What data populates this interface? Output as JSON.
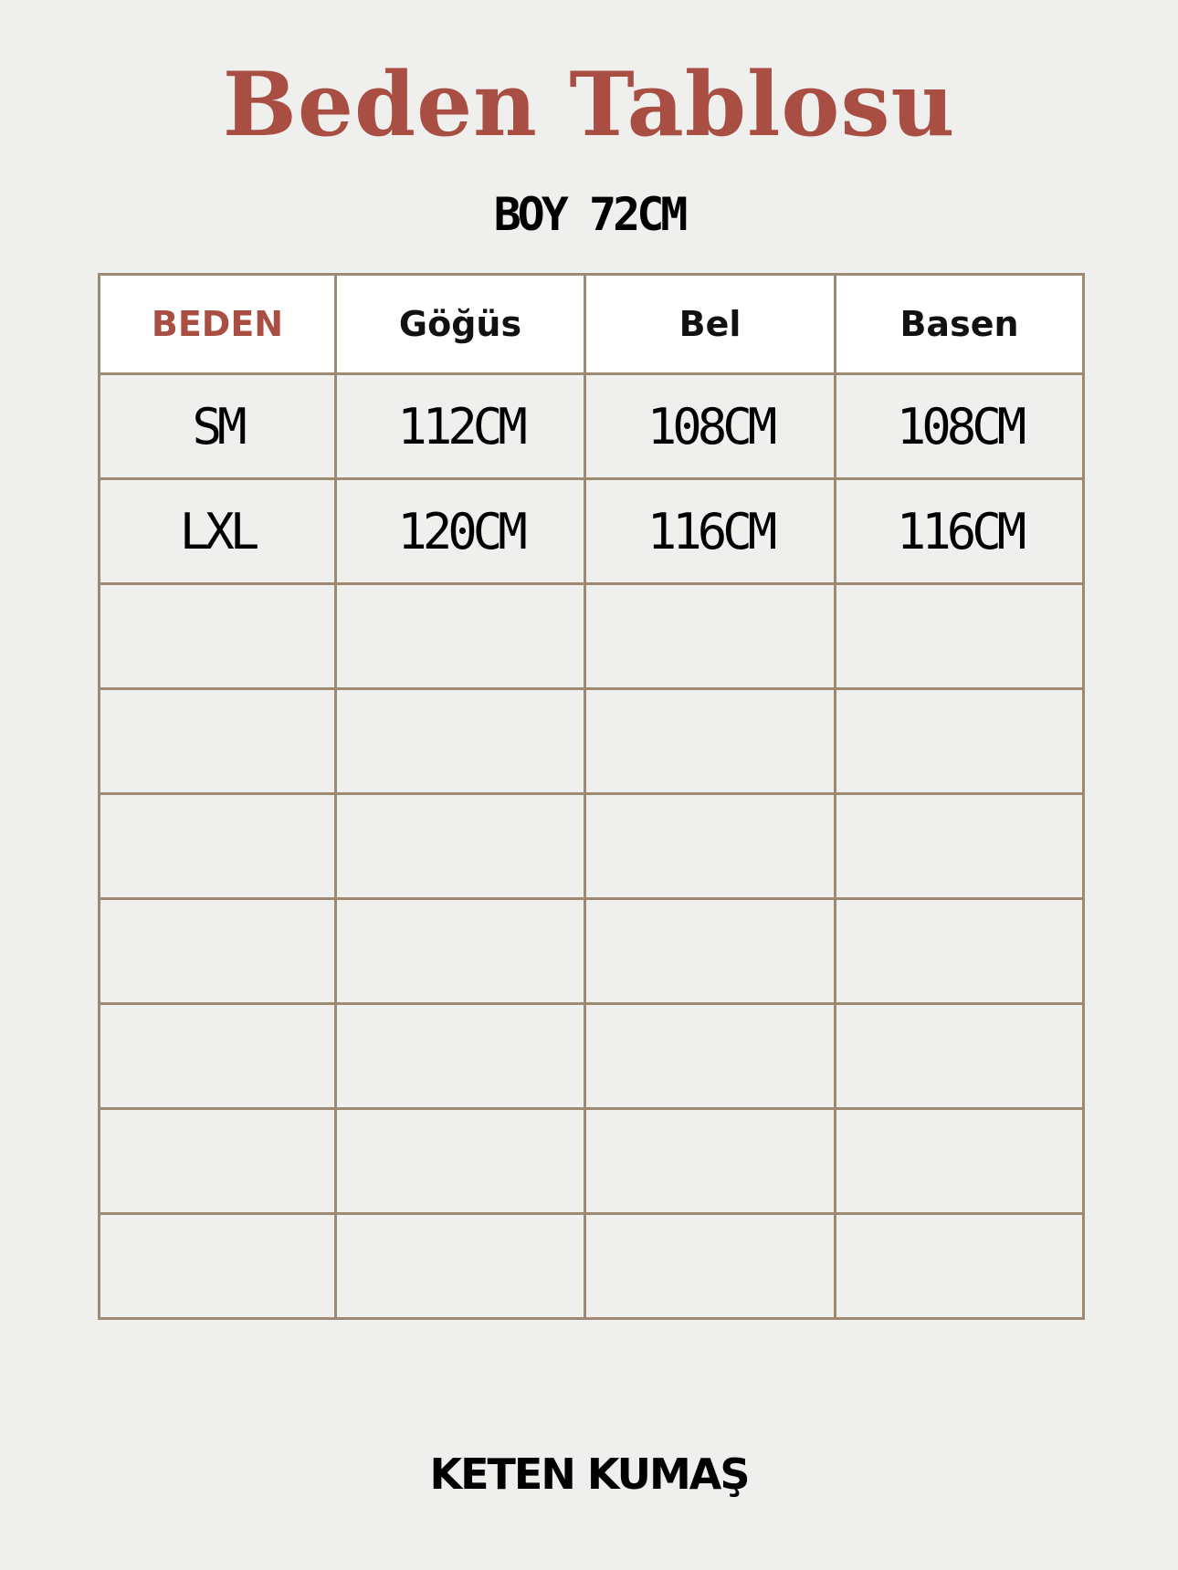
{
  "title": "Beden Tablosu",
  "subtitle": "BOY 72CM",
  "table": {
    "headers": [
      "BEDEN",
      "Göğüs",
      "Bel",
      "Basen"
    ],
    "rows": [
      [
        "SM",
        "112CM",
        "108CM",
        "108CM"
      ],
      [
        "LXL",
        "120CM",
        "116CM",
        "116CM"
      ],
      [
        "",
        "",
        "",
        ""
      ],
      [
        "",
        "",
        "",
        ""
      ],
      [
        "",
        "",
        "",
        ""
      ],
      [
        "",
        "",
        "",
        ""
      ],
      [
        "",
        "",
        "",
        ""
      ],
      [
        "",
        "",
        "",
        ""
      ],
      [
        "",
        "",
        "",
        ""
      ]
    ]
  },
  "footer": "KETEN KUMAŞ",
  "colors": {
    "title": "#a94e42",
    "border": "#9e8a73",
    "background": "#efefed"
  }
}
